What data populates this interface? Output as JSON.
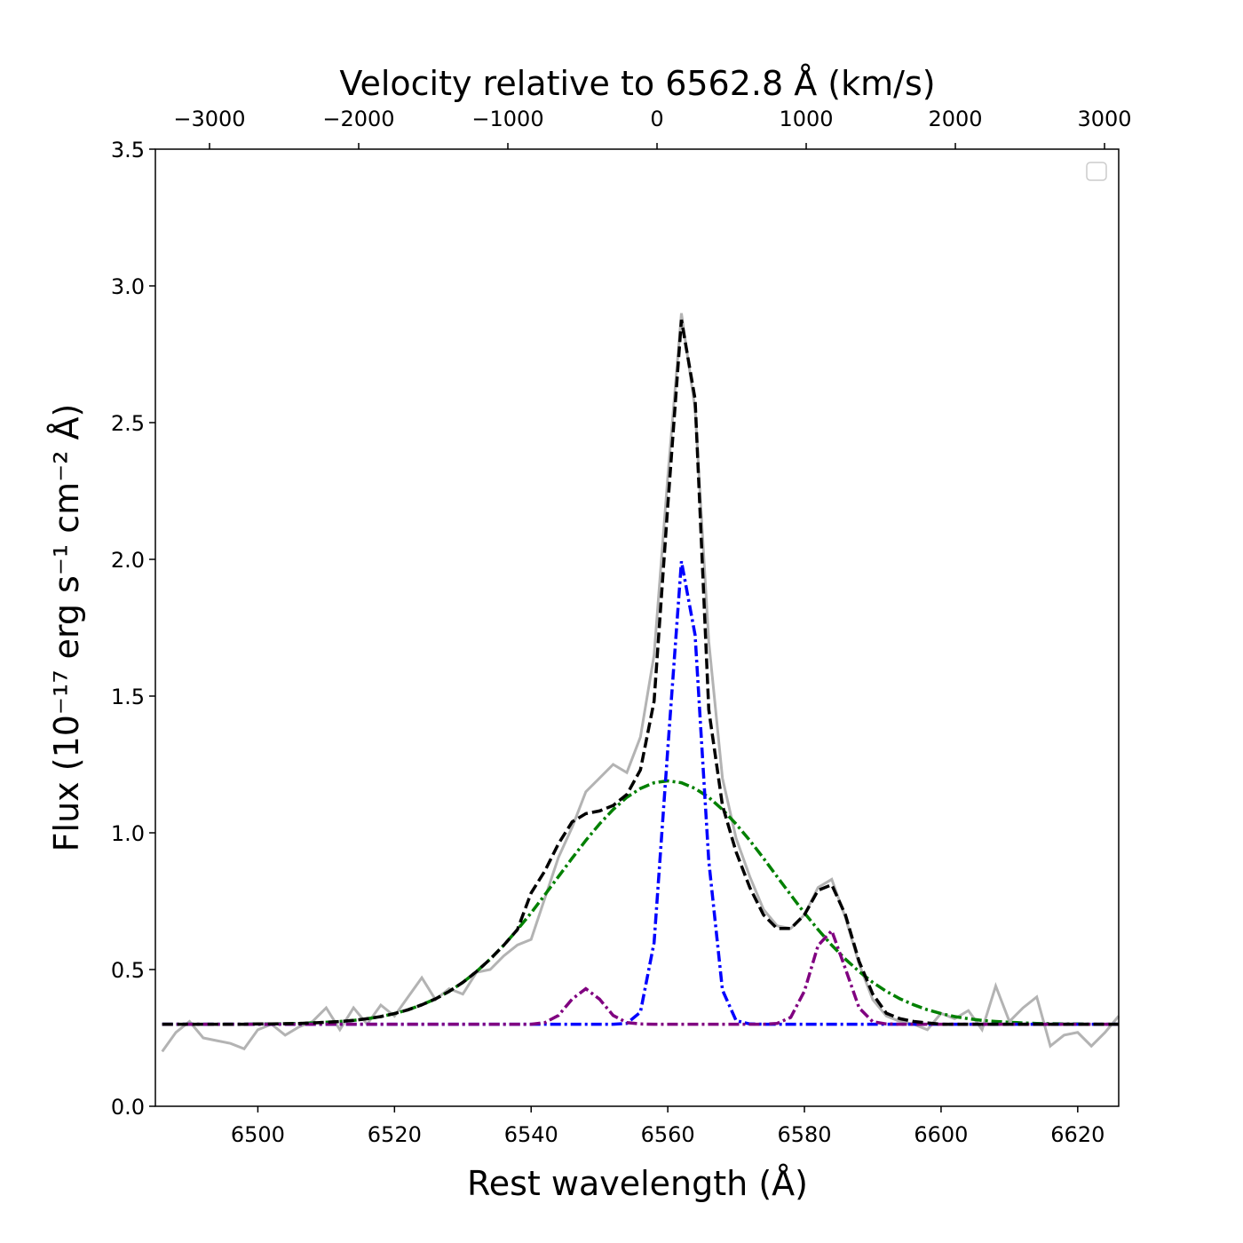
{
  "chart_data": {
    "type": "line",
    "xlabel": "Rest wavelength  (Å)",
    "ylabel": "Flux (10⁻¹⁷ erg  s⁻¹ cm⁻² Å)",
    "x2label": "Velocity relative to 6562.8 Å (km/s)",
    "xlim": [
      6485,
      6626
    ],
    "ylim": [
      0,
      3.5
    ],
    "x2lim": [
      -3363,
      3095
    ],
    "xticks": [
      6500,
      6520,
      6540,
      6560,
      6580,
      6600,
      6620
    ],
    "yticks": [
      {
        "value": 0,
        "label": "0.0"
      },
      0.5,
      {
        "value": 1,
        "label": "1.0"
      },
      1.5,
      {
        "value": 2,
        "label": "2.0"
      },
      2.5,
      {
        "value": 3,
        "label": "3.0"
      },
      3.5
    ],
    "x2ticks": [
      {
        "value": -3000,
        "label": "−3000"
      },
      {
        "value": -2000,
        "label": "−2000"
      },
      {
        "value": -1000,
        "label": "−1000"
      },
      0,
      1000,
      2000,
      3000
    ],
    "x": [
      6486,
      6488,
      6490,
      6492,
      6494,
      6496,
      6498,
      6500,
      6502,
      6504,
      6506,
      6508,
      6510,
      6512,
      6514,
      6516,
      6518,
      6520,
      6522,
      6524,
      6526,
      6528,
      6530,
      6532,
      6534,
      6536,
      6538,
      6540,
      6542,
      6544,
      6546,
      6548,
      6550,
      6552,
      6554,
      6556,
      6558,
      6560,
      6562,
      6564,
      6566,
      6568,
      6570,
      6572,
      6574,
      6576,
      6578,
      6580,
      6582,
      6584,
      6586,
      6588,
      6590,
      6592,
      6594,
      6596,
      6598,
      6600,
      6602,
      6604,
      6606,
      6608,
      6610,
      6612,
      6614,
      6616,
      6618,
      6620,
      6622,
      6624,
      6626
    ],
    "series": [
      {
        "color": "#808080",
        "linestyle": "solid",
        "opacity": 0.6,
        "values": [
          0.2,
          0.27,
          0.31,
          0.25,
          0.24,
          0.23,
          0.21,
          0.28,
          0.3,
          0.26,
          0.29,
          0.31,
          0.36,
          0.28,
          0.36,
          0.3,
          0.37,
          0.33,
          0.4,
          0.47,
          0.39,
          0.43,
          0.41,
          0.49,
          0.5,
          0.55,
          0.59,
          0.61,
          0.76,
          0.91,
          1.02,
          1.15,
          1.2,
          1.25,
          1.22,
          1.35,
          1.65,
          2.3,
          2.9,
          2.55,
          1.7,
          1.2,
          0.98,
          0.84,
          0.72,
          0.66,
          0.65,
          0.7,
          0.8,
          0.83,
          0.69,
          0.52,
          0.39,
          0.33,
          0.31,
          0.3,
          0.28,
          0.34,
          0.32,
          0.35,
          0.28,
          0.44,
          0.31,
          0.36,
          0.4,
          0.22,
          0.26,
          0.27,
          0.22,
          0.27,
          0.33
        ]
      },
      {
        "color": "#008000",
        "linestyle": "dashdot",
        "opacity": 1,
        "values": [
          0.3,
          0.3,
          0.3,
          0.3,
          0.3,
          0.3,
          0.3,
          0.301,
          0.301,
          0.302,
          0.303,
          0.305,
          0.307,
          0.31,
          0.314,
          0.32,
          0.328,
          0.339,
          0.353,
          0.371,
          0.393,
          0.42,
          0.453,
          0.493,
          0.538,
          0.589,
          0.646,
          0.707,
          0.773,
          0.84,
          0.907,
          0.972,
          1.032,
          1.085,
          1.13,
          1.162,
          1.183,
          1.19,
          1.183,
          1.162,
          1.13,
          1.085,
          1.032,
          0.972,
          0.907,
          0.84,
          0.773,
          0.707,
          0.646,
          0.589,
          0.538,
          0.493,
          0.453,
          0.42,
          0.393,
          0.371,
          0.353,
          0.339,
          0.328,
          0.32,
          0.314,
          0.31,
          0.307,
          0.305,
          0.303,
          0.302,
          0.301,
          0.301,
          0.3,
          0.3,
          0.3
        ]
      },
      {
        "color": "#0000ff",
        "linestyle": "dashdot",
        "opacity": 1,
        "values": [
          0.3,
          0.3,
          0.3,
          0.3,
          0.3,
          0.3,
          0.3,
          0.3,
          0.3,
          0.3,
          0.3,
          0.3,
          0.3,
          0.3,
          0.3,
          0.3,
          0.3,
          0.3,
          0.3,
          0.3,
          0.3,
          0.3,
          0.3,
          0.3,
          0.3,
          0.3,
          0.3,
          0.3,
          0.3,
          0.3,
          0.3,
          0.3,
          0.3,
          0.3,
          0.303,
          0.344,
          0.598,
          1.305,
          1.993,
          1.723,
          0.897,
          0.425,
          0.313,
          0.301,
          0.3,
          0.3,
          0.3,
          0.3,
          0.3,
          0.3,
          0.3,
          0.3,
          0.3,
          0.3,
          0.3,
          0.3,
          0.3,
          0.3,
          0.3,
          0.3,
          0.3,
          0.3,
          0.3,
          0.3,
          0.3,
          0.3,
          0.3,
          0.3,
          0.3,
          0.3,
          0.3
        ]
      },
      {
        "color": "#800080",
        "linestyle": "dashdot",
        "opacity": 1,
        "values": [
          0.3,
          0.3,
          0.3,
          0.3,
          0.3,
          0.3,
          0.3,
          0.3,
          0.3,
          0.3,
          0.3,
          0.3,
          0.3,
          0.3,
          0.3,
          0.3,
          0.3,
          0.3,
          0.3,
          0.3,
          0.3,
          0.3,
          0.3,
          0.3,
          0.3,
          0.3,
          0.3,
          0.3,
          0.306,
          0.332,
          0.392,
          0.43,
          0.392,
          0.332,
          0.306,
          0.301,
          0.3,
          0.3,
          0.3,
          0.3,
          0.3,
          0.3,
          0.3,
          0.3,
          0.3,
          0.303,
          0.325,
          0.421,
          0.588,
          0.642,
          0.503,
          0.36,
          0.309,
          0.301,
          0.3,
          0.3,
          0.3,
          0.3,
          0.3,
          0.3,
          0.3,
          0.3,
          0.3,
          0.3,
          0.3,
          0.3,
          0.3,
          0.3,
          0.3,
          0.3,
          0.3
        ]
      },
      {
        "color": "#000000",
        "linestyle": "dashed",
        "opacity": 1,
        "values": [
          0.3,
          0.3,
          0.3,
          0.3,
          0.3,
          0.3,
          0.3,
          0.301,
          0.301,
          0.302,
          0.303,
          0.305,
          0.307,
          0.31,
          0.314,
          0.32,
          0.328,
          0.339,
          0.353,
          0.371,
          0.393,
          0.42,
          0.453,
          0.493,
          0.538,
          0.589,
          0.646,
          0.78,
          0.86,
          0.96,
          1.04,
          1.07,
          1.08,
          1.1,
          1.14,
          1.23,
          1.481,
          2.195,
          2.876,
          2.585,
          1.45,
          1.1,
          0.93,
          0.8,
          0.7,
          0.65,
          0.65,
          0.7,
          0.79,
          0.81,
          0.7,
          0.53,
          0.41,
          0.34,
          0.32,
          0.31,
          0.305,
          0.3,
          0.3,
          0.3,
          0.3,
          0.3,
          0.3,
          0.3,
          0.3,
          0.3,
          0.3,
          0.3,
          0.3,
          0.3,
          0.3
        ]
      }
    ]
  }
}
